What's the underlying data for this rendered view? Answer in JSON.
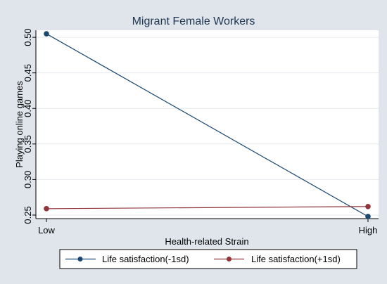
{
  "chart_data": {
    "type": "line",
    "title": "Migrant Female Workers",
    "xlabel": "Health-related Strain",
    "ylabel": "Playing online games",
    "categories": [
      "Low",
      "High"
    ],
    "yticks": [
      "0.25",
      "0.30",
      "0.35",
      "0.40",
      "0.45",
      "0.50"
    ],
    "ylim": [
      0.245,
      0.51
    ],
    "grid": true,
    "legend_position": "bottom",
    "series": [
      {
        "name": "Life satisfaction(-1sd)",
        "values": [
          0.505,
          0.248
        ],
        "color": "#1a476f"
      },
      {
        "name": "Life satisfaction(+1sd)",
        "values": [
          0.259,
          0.262
        ],
        "color": "#90353b"
      }
    ]
  }
}
